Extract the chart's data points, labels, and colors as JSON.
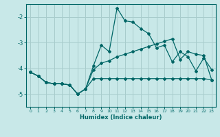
{
  "title": "",
  "xlabel": "Humidex (Indice chaleur)",
  "bg_color": "#c8e8e8",
  "grid_color": "#a8cccc",
  "line_color": "#006666",
  "xlim": [
    -0.5,
    23.5
  ],
  "ylim": [
    -5.5,
    -1.5
  ],
  "yticks": [
    -5,
    -4,
    -3,
    -2
  ],
  "xticks": [
    0,
    1,
    2,
    3,
    4,
    5,
    6,
    7,
    8,
    9,
    10,
    11,
    12,
    13,
    14,
    15,
    16,
    17,
    18,
    19,
    20,
    21,
    22,
    23
  ],
  "line1_x": [
    0,
    1,
    2,
    3,
    4,
    5,
    6,
    7,
    8,
    9,
    10,
    11,
    12,
    13,
    14,
    15,
    16,
    17,
    18,
    19,
    20,
    21,
    22,
    23
  ],
  "line1_y": [
    -4.15,
    -4.3,
    -4.55,
    -4.6,
    -4.6,
    -4.65,
    -5.0,
    -4.8,
    -3.9,
    -3.1,
    -3.35,
    -1.65,
    -2.15,
    -2.2,
    -2.45,
    -2.65,
    -3.2,
    -3.1,
    -3.75,
    -3.35,
    -3.55,
    -4.1,
    -3.6,
    -4.05
  ],
  "line2_x": [
    0,
    1,
    2,
    3,
    4,
    5,
    6,
    7,
    8,
    9,
    10,
    11,
    12,
    13,
    14,
    15,
    16,
    17,
    18,
    19,
    20,
    21,
    22,
    23
  ],
  "line2_y": [
    -4.15,
    -4.3,
    -4.55,
    -4.6,
    -4.6,
    -4.65,
    -5.0,
    -4.8,
    -4.4,
    -4.4,
    -4.4,
    -4.4,
    -4.4,
    -4.4,
    -4.4,
    -4.4,
    -4.4,
    -4.4,
    -4.4,
    -4.4,
    -4.4,
    -4.4,
    -4.4,
    -4.45
  ],
  "line3_x": [
    0,
    1,
    2,
    3,
    4,
    5,
    6,
    7,
    8,
    9,
    10,
    11,
    12,
    13,
    14,
    15,
    16,
    17,
    18,
    19,
    20,
    21,
    22,
    23
  ],
  "line3_y": [
    -4.15,
    -4.3,
    -4.55,
    -4.6,
    -4.6,
    -4.65,
    -5.0,
    -4.8,
    -4.05,
    -3.8,
    -3.7,
    -3.55,
    -3.45,
    -3.35,
    -3.25,
    -3.15,
    -3.05,
    -2.95,
    -2.85,
    -3.65,
    -3.35,
    -3.45,
    -3.5,
    -4.45
  ]
}
